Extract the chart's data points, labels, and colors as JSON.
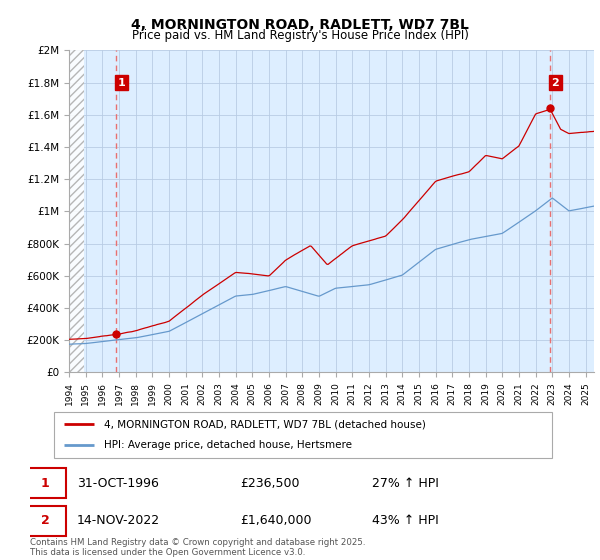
{
  "title1": "4, MORNINGTON ROAD, RADLETT, WD7 7BL",
  "title2": "Price paid vs. HM Land Registry's House Price Index (HPI)",
  "ylabel_ticks": [
    "£0",
    "£200K",
    "£400K",
    "£600K",
    "£800K",
    "£1M",
    "£1.2M",
    "£1.4M",
    "£1.6M",
    "£1.8M",
    "£2M"
  ],
  "ylabel_values": [
    0,
    200000,
    400000,
    600000,
    800000,
    1000000,
    1200000,
    1400000,
    1600000,
    1800000,
    2000000
  ],
  "year_start": 1994,
  "year_end": 2025,
  "red_line_color": "#cc0000",
  "blue_line_color": "#6699cc",
  "marker_color": "#cc0000",
  "dashed_line_color": "#e87070",
  "annotation_box_color": "#cc0000",
  "chart_bg_color": "#ddeeff",
  "legend_label_red": "4, MORNINGTON ROAD, RADLETT, WD7 7BL (detached house)",
  "legend_label_blue": "HPI: Average price, detached house, Hertsmere",
  "sale1_label": "1",
  "sale1_date": "31-OCT-1996",
  "sale1_price": "£236,500",
  "sale1_hpi": "27% ↑ HPI",
  "sale1_year": 1996.83,
  "sale1_value": 236500,
  "sale2_label": "2",
  "sale2_date": "14-NOV-2022",
  "sale2_price": "£1,640,000",
  "sale2_hpi": "43% ↑ HPI",
  "sale2_year": 2022.87,
  "sale2_value": 1640000,
  "footer": "Contains HM Land Registry data © Crown copyright and database right 2025.\nThis data is licensed under the Open Government Licence v3.0.",
  "grid_color": "#b8cce4"
}
